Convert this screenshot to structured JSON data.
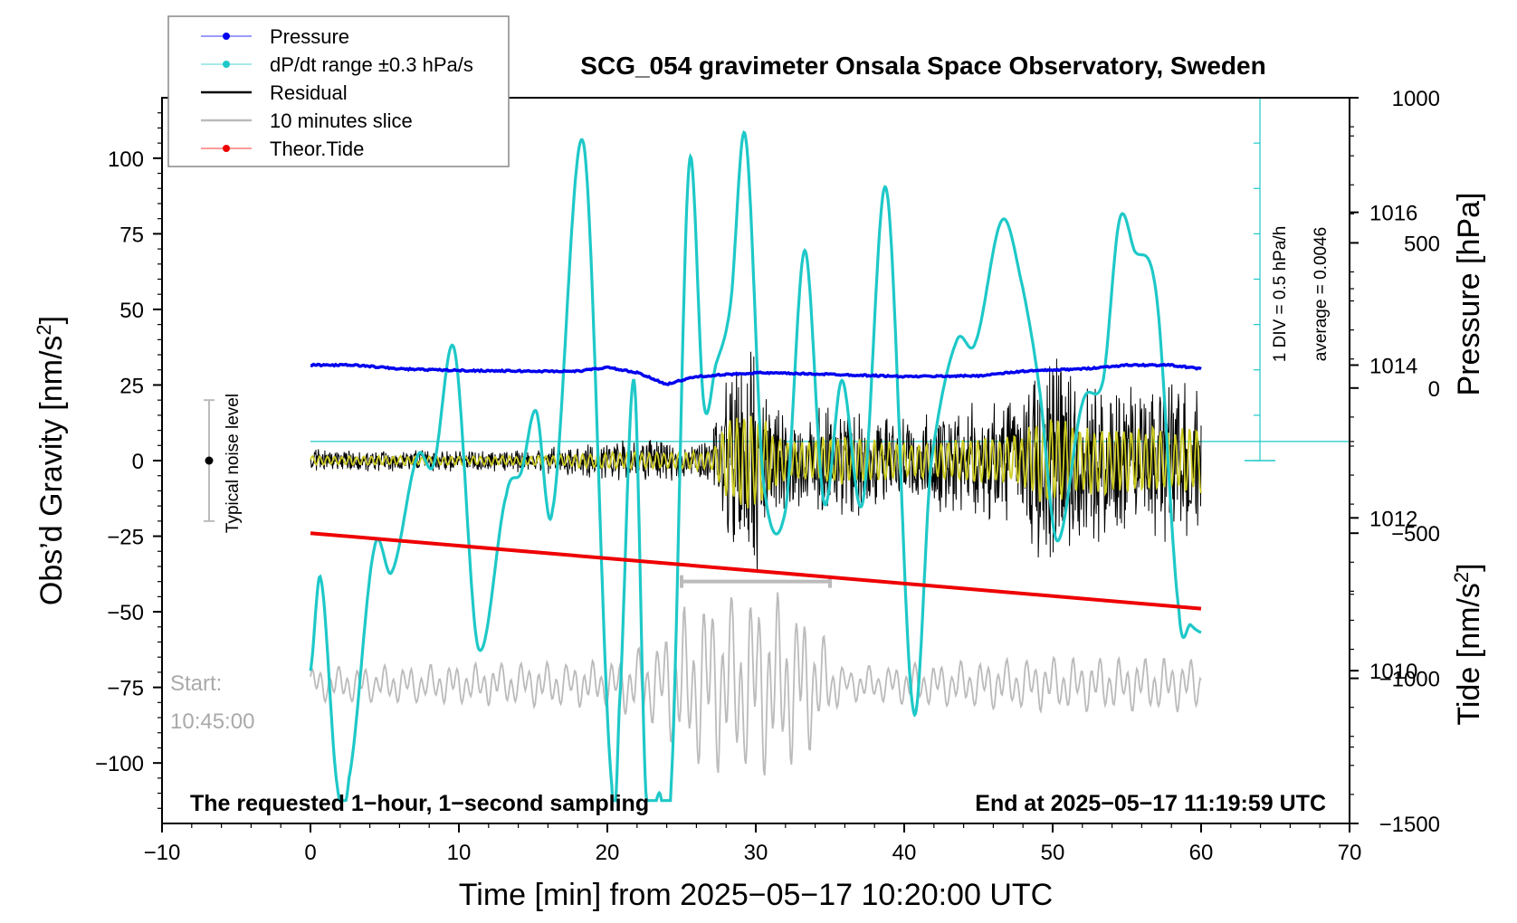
{
  "chart_data": {
    "type": "line",
    "title": "SCG_054 gravimeter Onsala Space Observatory, Sweden",
    "xlabel": "Time [min] from 2025−05−17 10:20:00 UTC",
    "xlim": [
      -10,
      70
    ],
    "x_ticks": [
      "−10",
      "0",
      "10",
      "20",
      "30",
      "40",
      "50",
      "60",
      "70"
    ],
    "left_axis": {
      "label": "Obs’d Gravity [nm/s²]",
      "label_main": "Obs’d Gravity [nm/s",
      "label_sup": "2",
      "label_end": "]",
      "ylim": [
        -120,
        120
      ],
      "ticks": [
        "100",
        "75",
        "50",
        "25",
        "0",
        "−25",
        "−50",
        "−75",
        "−100"
      ]
    },
    "pressure_axis": {
      "label": "Pressure [hPa]",
      "ylim": [
        1008,
        1017.5
      ],
      "ticks": [
        "1016",
        "1014",
        "1012",
        "1010"
      ]
    },
    "tide_axis": {
      "label": "Tide [nm/s²]",
      "label_main": "Tide [nm/s",
      "label_sup": "2",
      "label_end": "]",
      "ylim": [
        -1500,
        1000
      ],
      "ticks": [
        "1000",
        "500",
        "0",
        "−500",
        "−1000",
        "−1500"
      ]
    },
    "legend": {
      "position": "top-left",
      "entries": [
        {
          "label": "Pressure",
          "color": "#0000ee"
        },
        {
          "label": "dP/dt range ±0.3 hPa/s",
          "color": "#1ec8c8"
        },
        {
          "label": "Residual",
          "color": "#000000"
        },
        {
          "label": "10 minutes slice",
          "color": "#bbbbbb"
        },
        {
          "label": "Theor.Tide",
          "color": "#ee0000"
        }
      ]
    },
    "series": [
      {
        "name": "Pressure",
        "axis": "pressure",
        "color": "#0000ee",
        "x": [
          0,
          3,
          6,
          10,
          15,
          18,
          20,
          22,
          24,
          26,
          30,
          35,
          40,
          45,
          48,
          52,
          55,
          58,
          60
        ],
        "values": [
          1014.0,
          1014.0,
          1013.95,
          1013.93,
          1013.92,
          1013.92,
          1013.97,
          1013.9,
          1013.75,
          1013.85,
          1013.9,
          1013.88,
          1013.85,
          1013.86,
          1013.92,
          1013.95,
          1014.0,
          1014.0,
          1013.95
        ]
      },
      {
        "name": "dP/dt range ±0.3 hPa/s",
        "axis": "pressure",
        "color": "#1ec8c8",
        "x": [
          0,
          0.7,
          1.8,
          2.6,
          4.3,
          5.5,
          7.2,
          8.3,
          9.7,
          11.3,
          13.2,
          14.2,
          15.2,
          16.3,
          18.4,
          20.3,
          20.8,
          21.8,
          22.6,
          23.5,
          24.3,
          25.5,
          26.5,
          27.3,
          28.3,
          29.3,
          30.5,
          32.0,
          33.3,
          34.6,
          35.8,
          37.2,
          38.8,
          40.6,
          41.8,
          43.5,
          44.8,
          46.6,
          48.0,
          49.1,
          50.3,
          52.0,
          53.4,
          54.5,
          55.5,
          57.0,
          58.5,
          59.3,
          60
        ],
        "values": [
          1010.0,
          1011.2,
          1008.5,
          1008.6,
          1011.6,
          1011.3,
          1012.8,
          1012.7,
          1014.2,
          1010.3,
          1012.3,
          1012.6,
          1013.4,
          1012.1,
          1016.9,
          1008.5,
          1009.5,
          1013.8,
          1008.4,
          1008.4,
          1008.5,
          1016.6,
          1013.5,
          1014.0,
          1014.8,
          1017.0,
          1012.5,
          1012.1,
          1015.5,
          1012.2,
          1013.8,
          1012.2,
          1016.3,
          1009.5,
          1012.7,
          1014.3,
          1014.3,
          1015.9,
          1015.0,
          1013.7,
          1011.7,
          1013.5,
          1013.8,
          1015.9,
          1015.5,
          1014.9,
          1010.8,
          1010.6,
          1010.5
        ]
      },
      {
        "name": "Residual",
        "axis": "gravity",
        "color": "#000000",
        "envelope_x": [
          0,
          15,
          20,
          27,
          28,
          30,
          32,
          36,
          40,
          45,
          48,
          49,
          50,
          52,
          55,
          58,
          60
        ],
        "envelope_amp": [
          4,
          4,
          7,
          8,
          35,
          45,
          16,
          22,
          15,
          20,
          22,
          38,
          40,
          30,
          30,
          28,
          30
        ]
      },
      {
        "name": "10 minutes slice",
        "axis": "gravity",
        "color": "#bbbbbb",
        "x_range": [
          0,
          60
        ],
        "center": -74,
        "envelope_x": [
          0,
          20,
          23,
          25,
          27,
          28,
          30,
          32,
          34,
          35,
          36,
          40,
          50,
          55,
          60
        ],
        "envelope_amp": [
          5,
          7,
          12,
          22,
          28,
          25,
          28,
          26,
          20,
          10,
          5,
          6,
          8,
          8,
          8
        ]
      },
      {
        "name": "Theor.Tide",
        "axis": "tide",
        "color": "#ee0000",
        "x": [
          0,
          60
        ],
        "values": [
          -500,
          -760
        ]
      }
    ]
  },
  "annotations": {
    "sampling_note": "The requested 1−hour, 1−second sampling",
    "end_note": "End at 2025−05−17 11:19:59 UTC",
    "start_label": "Start:",
    "start_time": "10:45:00",
    "noise_label": "Typical noise level",
    "div_label": "1 DIV = 0.5 hPa/h",
    "average_label": "average = 0.0046"
  }
}
